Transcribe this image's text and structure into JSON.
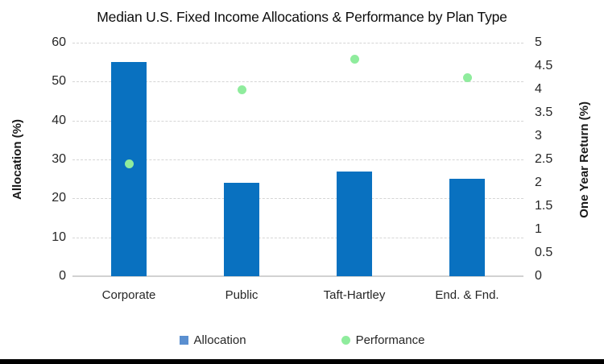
{
  "page": {
    "background": "#ffffff",
    "bottom_rule_color": "#000000"
  },
  "chart_data": {
    "type": "combo-bar-scatter",
    "title": "Median U.S. Fixed Income Allocations & Performance by Plan Type",
    "categories": [
      "Corporate",
      "Public",
      "Taft-Hartley",
      "End. & Fnd."
    ],
    "series": [
      {
        "name": "Allocation",
        "type": "bar",
        "axis": "left",
        "values": [
          55,
          24,
          27,
          25
        ],
        "color": "#0971c0",
        "legend_marker": "square",
        "legend_marker_color": "#5a8fd0"
      },
      {
        "name": "Performance",
        "type": "scatter",
        "axis": "right",
        "values": [
          2.4,
          4.0,
          4.65,
          4.25
        ],
        "color": "#8fec9d",
        "legend_marker": "circle",
        "legend_marker_color": "#8fec9d"
      }
    ],
    "left_axis": {
      "title": "Allocation (%)",
      "min": 0,
      "max": 60,
      "step": 10
    },
    "right_axis": {
      "title": "One Year Return (%)",
      "min": 0,
      "max": 5,
      "step": 0.5
    },
    "grid": true,
    "legend_position": "bottom",
    "colors": {
      "gridline": "#d5d5d5",
      "axis_line": "#d2d2d2",
      "text": "#262626",
      "title_text": "#0d0d0d"
    }
  }
}
